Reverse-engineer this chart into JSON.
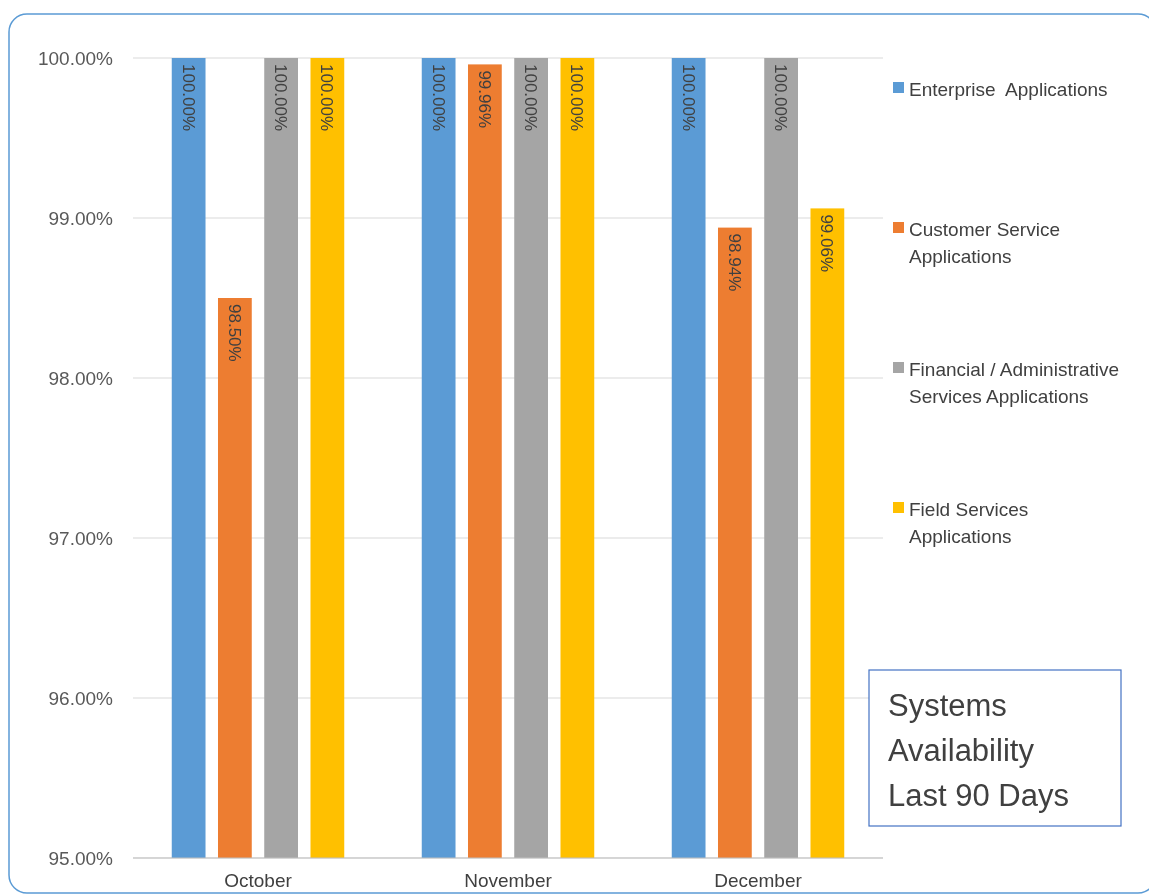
{
  "chart_data": {
    "type": "bar",
    "title": "Systems Availability Last 90 Days",
    "categories": [
      "October",
      "November",
      "December"
    ],
    "series": [
      {
        "name": "Enterprise  Applications",
        "color": "#5b9bd5",
        "values": [
          100,
          100,
          100
        ],
        "value_labels": [
          "100.00%",
          "100.00%",
          "100.00%"
        ]
      },
      {
        "name": "Customer Service Applications",
        "color": "#ed7d31",
        "values": [
          98.5,
          99.96,
          98.94
        ],
        "value_labels": [
          "98.50%",
          "99.96%",
          "98.94%"
        ]
      },
      {
        "name": "Financial / Administrative Services Applications",
        "color": "#a5a5a5",
        "values": [
          100,
          100,
          100
        ],
        "value_labels": [
          "100.00%",
          "100.00%",
          "100.00%"
        ]
      },
      {
        "name": "Field Services Applications",
        "color": "#ffc000",
        "values": [
          100,
          100,
          99.06
        ],
        "value_labels": [
          "100.00%",
          "100.00%",
          "99.06%"
        ]
      }
    ],
    "ylim": [
      95,
      100
    ],
    "yticks": [
      {
        "value": 95,
        "label": "95.00%"
      },
      {
        "value": 96,
        "label": "96.00%"
      },
      {
        "value": 97,
        "label": "97.00%"
      },
      {
        "value": 98,
        "label": "98.00%"
      },
      {
        "value": 99,
        "label": "99.00%"
      },
      {
        "value": 100,
        "label": "100.00%"
      }
    ],
    "grid": "y",
    "legend": "right"
  }
}
